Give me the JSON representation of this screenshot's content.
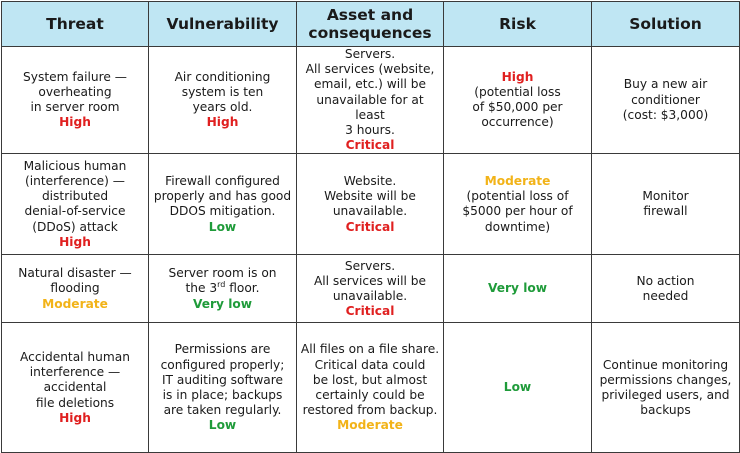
{
  "table": {
    "headers": [
      "Threat",
      "Vulnerability",
      "Asset and consequences",
      "Risk",
      "Solution"
    ],
    "rows": [
      {
        "threat": {
          "lines": [
            "System failure —",
            "overheating",
            "in server room"
          ],
          "level": "High"
        },
        "vulnerability": {
          "lines": [
            "Air conditioning",
            "system is ten",
            "years old."
          ],
          "level": "High"
        },
        "asset": {
          "lines": [
            "Servers.",
            "All services (website,",
            "email, etc.) will be",
            "unavailable for at least",
            "3 hours."
          ],
          "level": "Critical"
        },
        "risk": {
          "level": "High",
          "lines": [
            "(potential loss",
            "of $50,000 per",
            "occurrence)"
          ]
        },
        "solution": {
          "lines": [
            "Buy a new air",
            "conditioner",
            "(cost: $3,000)"
          ]
        }
      },
      {
        "threat": {
          "lines": [
            "Malicious human",
            "(interference) —",
            "distributed",
            "denial-of-service",
            "(DDoS) attack"
          ],
          "level": "High"
        },
        "vulnerability": {
          "lines": [
            "Firewall configured",
            "properly and has good",
            "DDOS mitigation."
          ],
          "level": "Low"
        },
        "asset": {
          "lines": [
            "Website.",
            "Website will be",
            "unavailable."
          ],
          "level": "Critical"
        },
        "risk": {
          "level": "Moderate",
          "lines": [
            "(potential loss of",
            "$5000 per hour of",
            "downtime)"
          ]
        },
        "solution": {
          "lines": [
            "Monitor",
            "firewall"
          ]
        }
      },
      {
        "threat": {
          "lines": [
            "Natural disaster —",
            "flooding"
          ],
          "level": "Moderate"
        },
        "vulnerability": {
          "line1": "Server room is on",
          "floor_pre": "the ",
          "floor_num": "3",
          "floor_sup": "rd",
          "floor_post": " floor.",
          "level": "Very low"
        },
        "asset": {
          "lines": [
            "Servers.",
            "All services will be",
            "unavailable."
          ],
          "level": "Critical"
        },
        "risk": {
          "level": "Very low"
        },
        "solution": {
          "lines": [
            "No action",
            "needed"
          ]
        }
      },
      {
        "threat": {
          "lines": [
            "Accidental human",
            "interference —",
            "accidental",
            "file deletions"
          ],
          "level": "High"
        },
        "vulnerability": {
          "lines": [
            "Permissions are",
            "configured properly;",
            "IT auditing software",
            "is in place; backups",
            "are taken regularly."
          ],
          "level": "Low"
        },
        "asset": {
          "lines": [
            "All files on a file share.",
            "Critical data could",
            "be lost, but almost",
            "certainly could be",
            "restored from backup."
          ],
          "level": "Moderate"
        },
        "risk": {
          "level": "Low"
        },
        "solution": {
          "lines": [
            "Continue monitoring",
            "permissions changes,",
            "privileged users, and",
            "backups"
          ]
        }
      }
    ],
    "colors": {
      "header_bg": "#bfe6f3",
      "high": "#e02020",
      "critical": "#e02020",
      "moderate": "#f2b318",
      "low": "#1f9b3a",
      "very_low": "#1f9b3a"
    }
  }
}
